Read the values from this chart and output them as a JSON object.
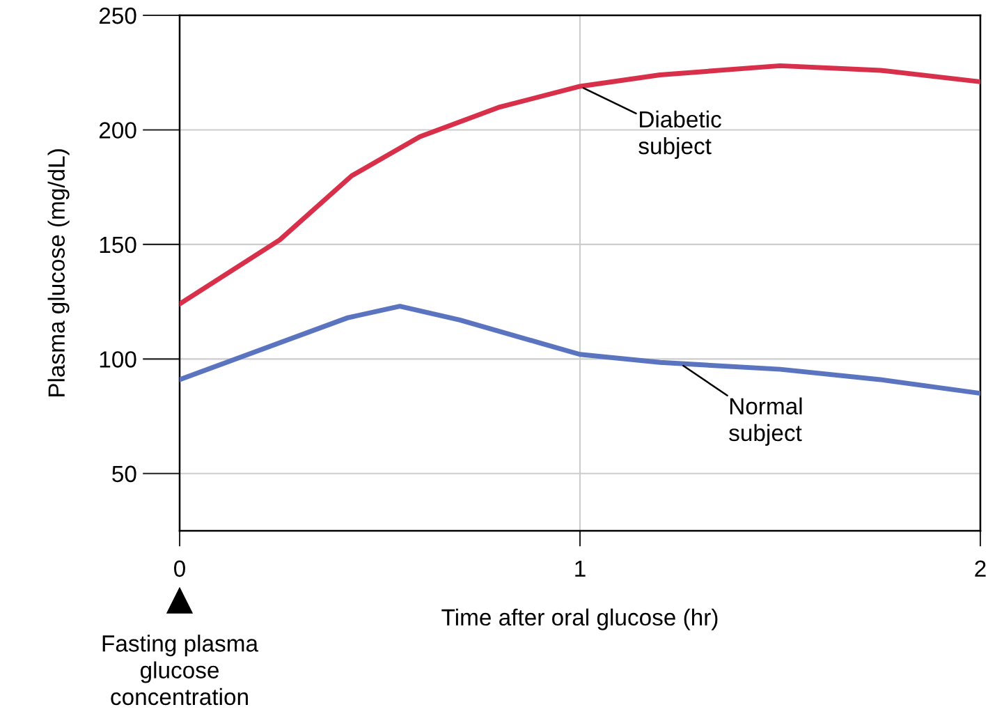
{
  "chart_data": {
    "type": "line",
    "xlabel": "Time after oral glucose (hr)",
    "ylabel": "Plasma glucose (mg/dL)",
    "xlim": [
      0,
      2
    ],
    "xticks": [
      0,
      1,
      2
    ],
    "ylim": [
      25,
      250
    ],
    "yticks": [
      50,
      100,
      150,
      200,
      250
    ],
    "grid": true,
    "legend": false,
    "marker": "none",
    "line_style": "solid",
    "series": [
      {
        "color": "#d8304a",
        "x": [
          0,
          0.25,
          0.43,
          0.6,
          0.8,
          1.0,
          1.2,
          1.5,
          1.75,
          2.0
        ],
        "values": [
          124,
          152,
          180,
          197,
          210,
          219,
          224,
          228,
          226,
          221
        ]
      },
      {
        "color": "#5b74c0",
        "x": [
          0,
          0.42,
          0.55,
          0.7,
          0.9,
          1.0,
          1.2,
          1.5,
          1.75,
          2.0
        ],
        "values": [
          91,
          118,
          123,
          117,
          107,
          102,
          98.5,
          95.5,
          91,
          85
        ]
      }
    ],
    "annotations": [
      {
        "text": "Diabetic\nsubject",
        "x": 1.0,
        "y": 219
      },
      {
        "text": "Normal\nsubject",
        "x": 1.25,
        "y": 98
      },
      "Fasting plasma\nglucose\nconcentration"
    ]
  }
}
